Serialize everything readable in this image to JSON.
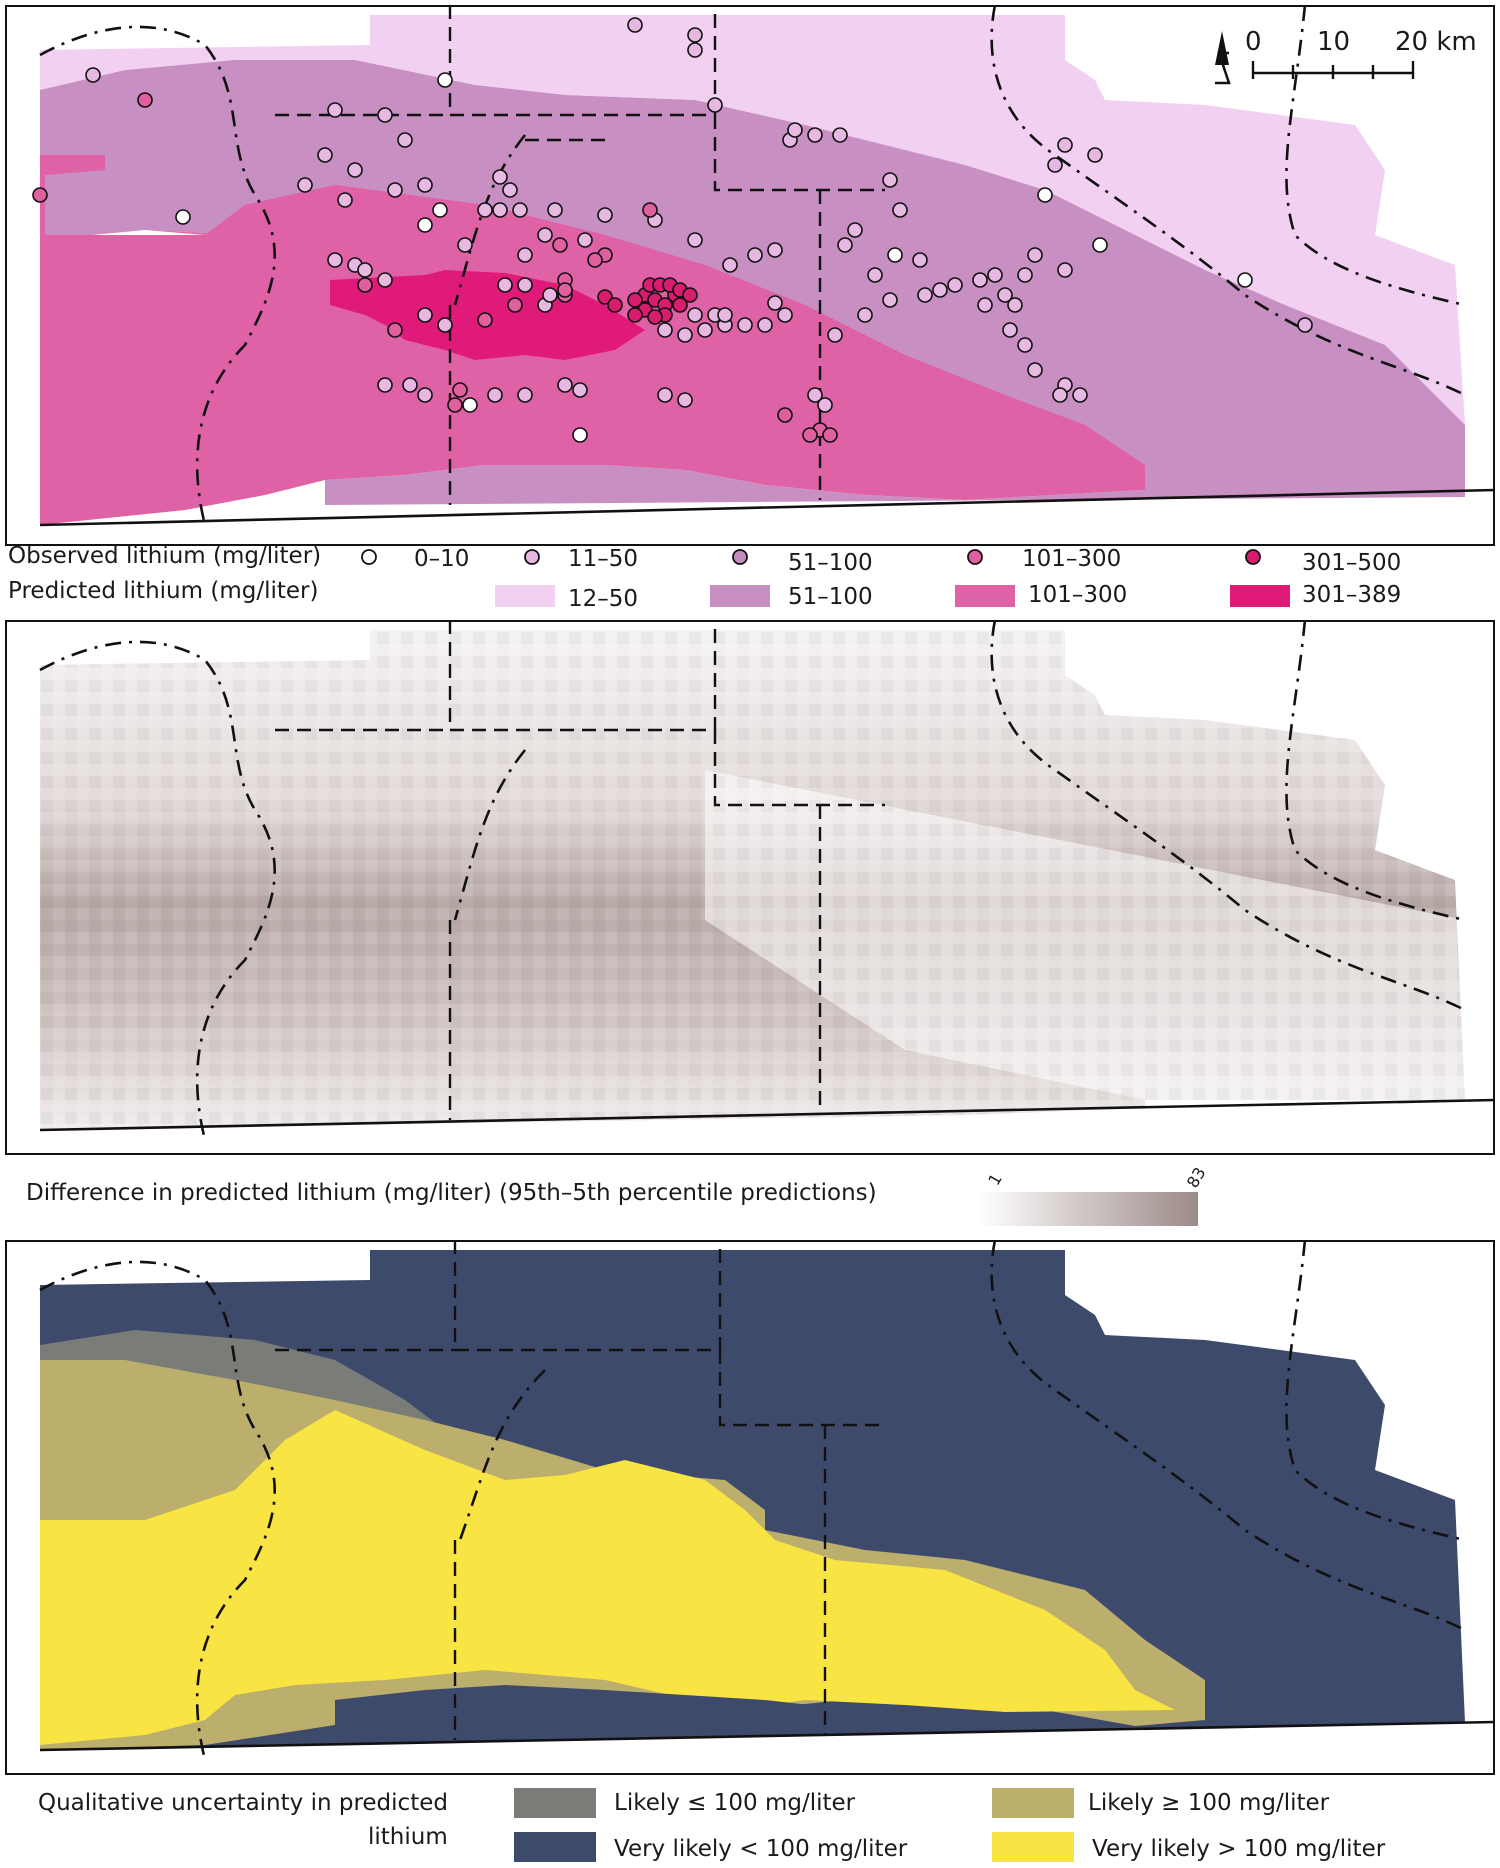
{
  "panel1": {
    "scale": {
      "north": "N",
      "ticks": [
        "0",
        "10",
        "20 km"
      ]
    },
    "legend": {
      "observed_title": "Observed lithium (mg/liter)",
      "predicted_title": "Predicted lithium (mg/liter)",
      "observed_classes": [
        "0–10",
        "11–50",
        "51–100",
        "101–300",
        "301–500"
      ],
      "predicted_classes": [
        "12–50",
        "51–100",
        "101–300",
        "301–389"
      ]
    },
    "colors": {
      "c1": "#f1d0f2",
      "c2": "#c88fc2",
      "c3": "#df62a6",
      "c4": "#e01a78",
      "obs0": "#ffffff",
      "obs1": "#e6b8e2",
      "obs2": "#c58cbd",
      "obs3": "#e0609f",
      "obs4": "#d81c6e"
    }
  },
  "panel2": {
    "legend": {
      "title": "Difference in predicted lithium (mg/liter)  (95th–5th percentile predictions)",
      "min_label": "1",
      "max_label": "83"
    },
    "colors": {
      "low": "#ffffff",
      "high": "#9c8a88"
    }
  },
  "panel3": {
    "legend": {
      "title_line1": "Qualitative uncertainty in predicted",
      "title_line2": "lithium",
      "likely_le": "Likely ≤ 100 mg/liter",
      "very_likely_lt": "Very likely < 100 mg/liter",
      "likely_ge": "Likely ≥ 100 mg/liter",
      "very_likely_gt": "Very likely > 100 mg/liter"
    },
    "colors": {
      "likely_le": "#7a7c78",
      "very_likely_lt": "#3e4a6b",
      "likely_ge": "#bcae6c",
      "very_likely_gt": "#f8e443"
    }
  }
}
